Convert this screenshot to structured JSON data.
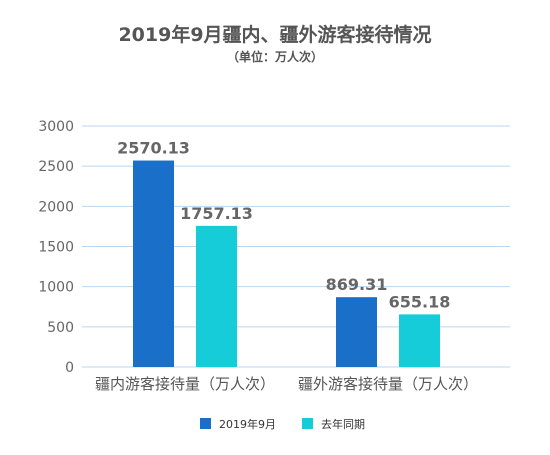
{
  "chart_data": {
    "type": "bar",
    "title": "2019年9月疆内、疆外游客接待情况",
    "subtitle": "（单位：万人次）",
    "categories": [
      "疆内游客接待量（万人次）",
      "疆外游客接待量（万人次）"
    ],
    "series": [
      {
        "name": "2019年9月",
        "values": [
          2570.13,
          869.31
        ],
        "color": "#1a70c8"
      },
      {
        "name": "去年同期",
        "values": [
          1757.13,
          655.18
        ],
        "color": "#16ccd8"
      }
    ],
    "data_labels": [
      [
        "2570.13",
        "869.31"
      ],
      [
        "1757.13",
        "655.18"
      ]
    ],
    "yticks": [
      "0",
      "500",
      "1000",
      "1500",
      "2000",
      "2500",
      "3000"
    ],
    "ylim": [
      0,
      3000
    ],
    "grid": true,
    "gridline_color": "#b9d7ef",
    "legend_position": "bottom"
  }
}
